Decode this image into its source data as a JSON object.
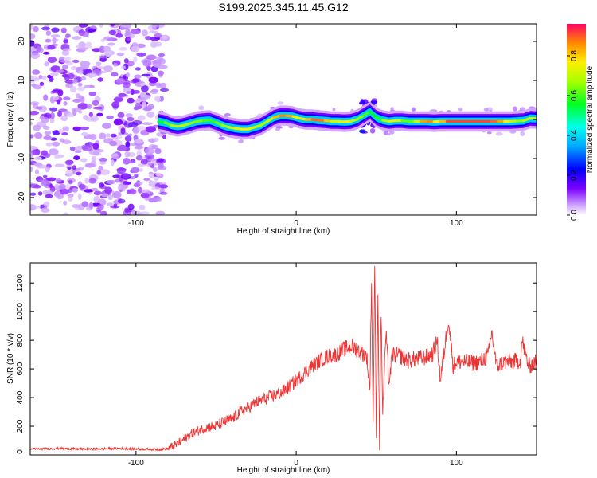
{
  "title": "S199.2025.345.11.45.G12",
  "chart_data": [
    {
      "type": "heatmap",
      "name": "spectrogram",
      "xlabel": "Height of straight line (km)",
      "ylabel": "Frequency (Hz)",
      "xlim": [
        -166,
        150
      ],
      "ylim": [
        -24.5,
        24.5
      ],
      "xticks": [
        -100,
        0,
        100
      ],
      "yticks": [
        -20,
        -10,
        0,
        10,
        20
      ],
      "noise_region_x": [
        -166,
        -82
      ],
      "ridge_x": [
        -86,
        -82,
        -78,
        -74,
        -70,
        -66,
        -62,
        -58,
        -54,
        -50,
        -46,
        -42,
        -38,
        -34,
        -30,
        -26,
        -22,
        -18,
        -14,
        -10,
        -6,
        -2,
        2,
        6,
        10,
        14,
        18,
        22,
        26,
        30,
        34,
        38,
        42,
        46,
        50,
        54,
        58,
        62,
        66,
        70,
        74,
        78,
        82,
        86,
        90,
        94,
        98,
        102,
        106,
        110,
        114,
        118,
        122,
        126,
        130,
        134,
        138,
        142,
        146,
        150
      ],
      "ridge_freq": [
        -0.5,
        -0.8,
        -1.5,
        -1.8,
        -1.5,
        -1.0,
        -0.5,
        -0.3,
        -0.2,
        -0.8,
        -1.5,
        -2.0,
        -2.3,
        -2.5,
        -2.5,
        -2.0,
        -1.5,
        -0.5,
        0.5,
        1.0,
        1.0,
        0.8,
        0.3,
        0.0,
        0.0,
        -0.2,
        -0.3,
        -0.5,
        -0.5,
        -0.6,
        -0.5,
        0.0,
        1.0,
        2.0,
        0.5,
        -0.2,
        -0.5,
        -0.3,
        -0.3,
        -0.5,
        -0.5,
        -0.5,
        -0.5,
        -0.6,
        -0.5,
        -0.5,
        -0.5,
        -0.5,
        -0.5,
        -0.5,
        -0.5,
        -0.5,
        -0.5,
        -0.5,
        -0.5,
        -0.5,
        -0.4,
        -0.3,
        0.3,
        0.2
      ],
      "ridge_amp": [
        0.55,
        0.6,
        0.7,
        0.75,
        0.72,
        0.7,
        0.68,
        0.65,
        0.6,
        0.62,
        0.68,
        0.72,
        0.75,
        0.8,
        0.8,
        0.75,
        0.7,
        0.7,
        0.8,
        0.9,
        0.9,
        0.85,
        0.75,
        0.8,
        0.9,
        0.95,
        0.88,
        0.8,
        0.7,
        0.85,
        0.75,
        0.7,
        0.65,
        0.6,
        0.55,
        0.65,
        0.75,
        0.8,
        0.7,
        0.6,
        0.7,
        0.8,
        0.95,
        0.85,
        0.75,
        0.95,
        0.95,
        0.95,
        0.95,
        0.95,
        0.95,
        0.95,
        0.95,
        0.9,
        0.85,
        0.75,
        0.7,
        0.65,
        0.8,
        0.7
      ],
      "colorbar": {
        "label": "Normalized spectral amplitude",
        "ticks": [
          0.0,
          0.2,
          0.4,
          0.6,
          0.8
        ],
        "tick_labels": [
          "0.0",
          "0.2",
          "0.4",
          "0.6",
          "0.8"
        ],
        "range": [
          0,
          0.96
        ]
      }
    },
    {
      "type": "line",
      "name": "snr",
      "xlabel": "Height of straight line (km)",
      "ylabel": "SNR (10 * v/v)",
      "xlim": [
        -166,
        150
      ],
      "ylim": [
        0,
        1340
      ],
      "xticks": [
        -100,
        0,
        100
      ],
      "yticks": [
        0,
        200,
        400,
        600,
        800,
        1000,
        1200
      ],
      "color": "#ee3333",
      "series": [
        {
          "name": "SNR",
          "x": [
            -166,
            -150,
            -130,
            -110,
            -95,
            -85,
            -80,
            -75,
            -70,
            -65,
            -60,
            -55,
            -50,
            -45,
            -40,
            -35,
            -30,
            -25,
            -20,
            -15,
            -10,
            -5,
            0,
            5,
            10,
            15,
            20,
            25,
            30,
            35,
            40,
            44,
            46,
            47,
            48,
            49,
            50,
            51,
            52,
            53,
            54,
            56,
            58,
            60,
            65,
            70,
            75,
            80,
            85,
            88,
            90,
            92,
            95,
            98,
            100,
            105,
            110,
            115,
            120,
            122,
            125,
            130,
            135,
            140,
            141,
            145,
            150
          ],
          "values": [
            40,
            45,
            40,
            45,
            40,
            38,
            45,
            70,
            110,
            150,
            175,
            195,
            200,
            230,
            250,
            300,
            330,
            365,
            390,
            410,
            430,
            470,
            520,
            570,
            620,
            660,
            690,
            700,
            740,
            760,
            720,
            690,
            450,
            1230,
            200,
            1340,
            150,
            1140,
            80,
            1000,
            300,
            850,
            500,
            700,
            690,
            660,
            670,
            680,
            700,
            800,
            520,
            690,
            950,
            620,
            650,
            650,
            640,
            650,
            700,
            860,
            620,
            650,
            650,
            660,
            800,
            620,
            650
          ]
        }
      ]
    }
  ]
}
